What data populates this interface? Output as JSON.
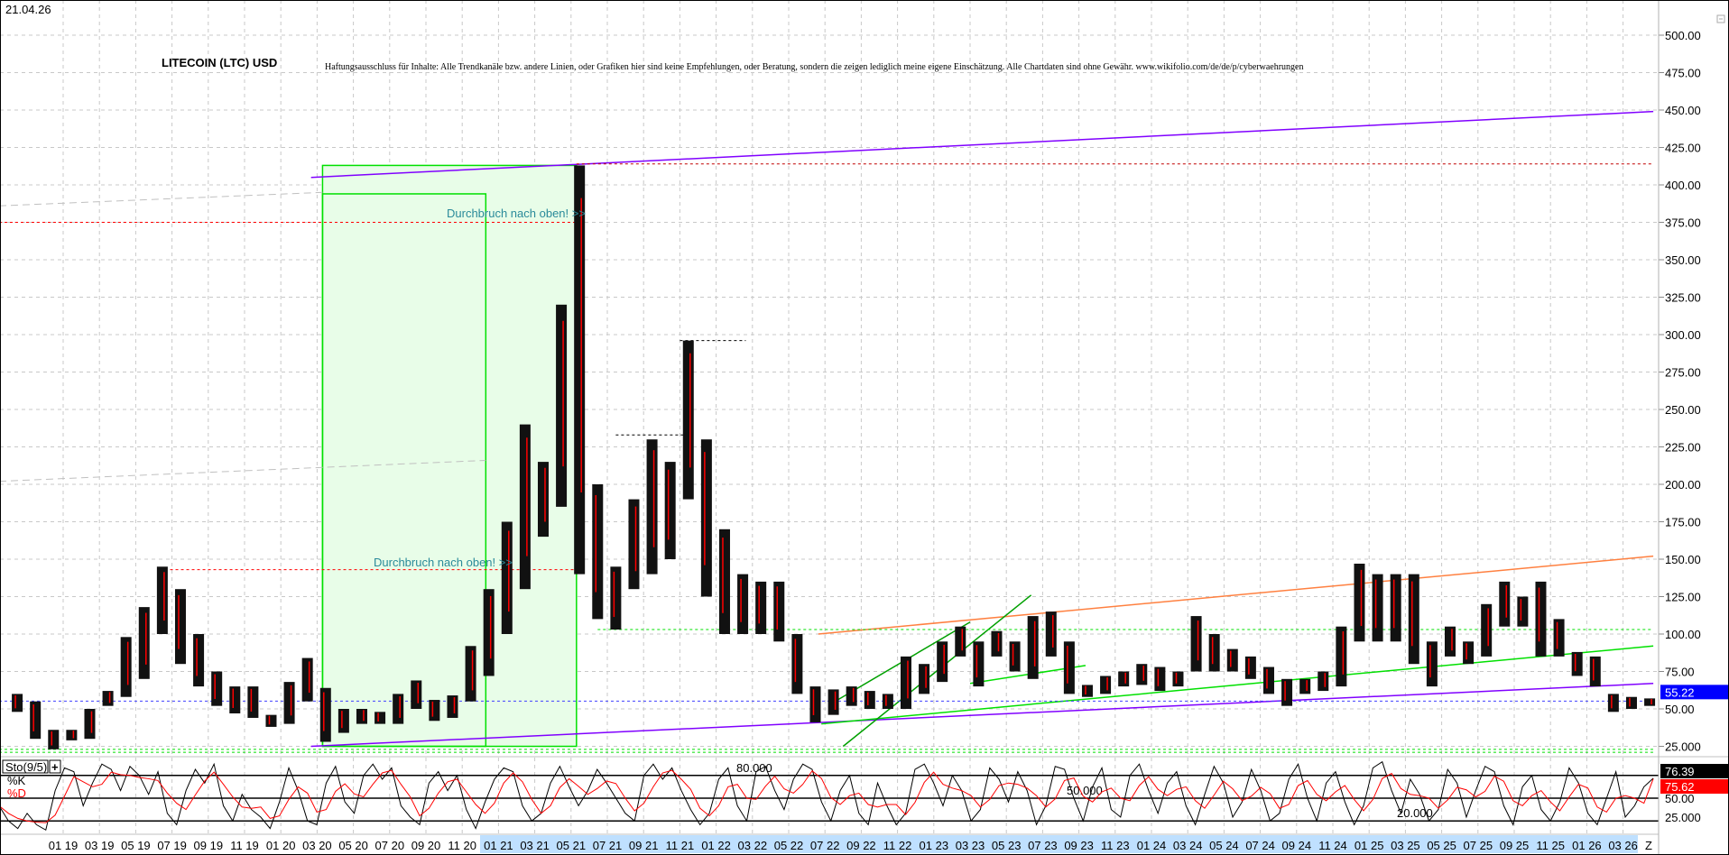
{
  "header": {
    "date": "21.04.26",
    "title": "LITECOIN (LTC) USD",
    "disclaimer": "Haftungsausschluss für Inhalte: Alle Trendkanäle bzw. andere Linien, oder Grafiken hier sind keine Empfehlungen, oder Beratung, sondern die zeigen lediglich meine eigene Einschätzung. Alle Chartdaten sind ohne Gewähr.  www.wikifolio.com/de/de/p/cyberwaehrungen"
  },
  "annotations_text": [
    "Durchbruch nach oben! >>",
    "Durchbruch nach oben! >>"
  ],
  "chart_data": [
    {
      "type": "bar",
      "title": "LITECOIN (LTC) USD",
      "ylim": [
        25,
        500
      ],
      "grid": true,
      "y_ticks": [
        "500.00",
        "475.00",
        "450.00",
        "425.00",
        "400.00",
        "375.00",
        "350.00",
        "325.00",
        "300.00",
        "275.00",
        "250.00",
        "225.00",
        "200.00",
        "175.00",
        "150.00",
        "125.00",
        "100.00",
        "75.00",
        "50.00",
        "25.000"
      ],
      "x_ticks": [
        "01 19",
        "03 19",
        "05 19",
        "07 19",
        "09 19",
        "11 19",
        "01 20",
        "03 20",
        "05 20",
        "07 20",
        "09 20",
        "11 20",
        "01 21",
        "03 21",
        "05 21",
        "07 21",
        "09 21",
        "11 21",
        "01 22",
        "03 22",
        "05 22",
        "07 22",
        "09 22",
        "11 22",
        "01 23",
        "03 23",
        "05 23",
        "07 23",
        "09 23",
        "11 23",
        "01 24",
        "03 24",
        "05 24",
        "07 24",
        "09 24",
        "11 24",
        "01 25",
        "03 25",
        "05 25",
        "07 25",
        "09 25",
        "11 25",
        "01 26",
        "03 26",
        "Z"
      ],
      "last_price": "55.22",
      "last_price_color": "#0000ff",
      "bars": [
        {
          "m": "2018-10",
          "h": 60,
          "l": 48
        },
        {
          "m": "2018-11",
          "h": 55,
          "l": 30
        },
        {
          "m": "2018-12",
          "h": 36,
          "l": 23
        },
        {
          "m": "2019-01",
          "h": 36,
          "l": 29
        },
        {
          "m": "2019-02",
          "h": 50,
          "l": 30
        },
        {
          "m": "2019-03",
          "h": 62,
          "l": 52
        },
        {
          "m": "2019-04",
          "h": 98,
          "l": 58
        },
        {
          "m": "2019-05",
          "h": 118,
          "l": 70
        },
        {
          "m": "2019-06",
          "h": 145,
          "l": 100
        },
        {
          "m": "2019-07",
          "h": 130,
          "l": 80
        },
        {
          "m": "2019-08",
          "h": 100,
          "l": 65
        },
        {
          "m": "2019-09",
          "h": 75,
          "l": 52
        },
        {
          "m": "2019-10",
          "h": 65,
          "l": 47
        },
        {
          "m": "2019-11",
          "h": 65,
          "l": 44
        },
        {
          "m": "2019-12",
          "h": 46,
          "l": 38
        },
        {
          "m": "2020-01",
          "h": 68,
          "l": 40
        },
        {
          "m": "2020-02",
          "h": 84,
          "l": 55
        },
        {
          "m": "2020-03",
          "h": 64,
          "l": 28
        },
        {
          "m": "2020-04",
          "h": 50,
          "l": 34
        },
        {
          "m": "2020-05",
          "h": 50,
          "l": 40
        },
        {
          "m": "2020-06",
          "h": 48,
          "l": 40
        },
        {
          "m": "2020-07",
          "h": 60,
          "l": 40
        },
        {
          "m": "2020-08",
          "h": 69,
          "l": 50
        },
        {
          "m": "2020-09",
          "h": 56,
          "l": 42
        },
        {
          "m": "2020-10",
          "h": 59,
          "l": 44
        },
        {
          "m": "2020-11",
          "h": 92,
          "l": 55
        },
        {
          "m": "2020-12",
          "h": 130,
          "l": 72
        },
        {
          "m": "2021-01",
          "h": 175,
          "l": 100
        },
        {
          "m": "2021-02",
          "h": 240,
          "l": 130
        },
        {
          "m": "2021-03",
          "h": 215,
          "l": 165
        },
        {
          "m": "2021-04",
          "h": 320,
          "l": 185
        },
        {
          "m": "2021-05",
          "h": 413,
          "l": 140
        },
        {
          "m": "2021-06",
          "h": 200,
          "l": 110
        },
        {
          "m": "2021-07",
          "h": 145,
          "l": 103
        },
        {
          "m": "2021-08",
          "h": 190,
          "l": 130
        },
        {
          "m": "2021-09",
          "h": 230,
          "l": 140
        },
        {
          "m": "2021-10",
          "h": 215,
          "l": 150
        },
        {
          "m": "2021-11",
          "h": 296,
          "l": 190
        },
        {
          "m": "2021-12",
          "h": 230,
          "l": 125
        },
        {
          "m": "2022-01",
          "h": 170,
          "l": 100
        },
        {
          "m": "2022-02",
          "h": 140,
          "l": 100
        },
        {
          "m": "2022-03",
          "h": 135,
          "l": 100
        },
        {
          "m": "2022-04",
          "h": 135,
          "l": 95
        },
        {
          "m": "2022-05",
          "h": 100,
          "l": 60
        },
        {
          "m": "2022-06",
          "h": 65,
          "l": 41
        },
        {
          "m": "2022-07",
          "h": 63,
          "l": 46
        },
        {
          "m": "2022-08",
          "h": 65,
          "l": 52
        },
        {
          "m": "2022-09",
          "h": 62,
          "l": 50
        },
        {
          "m": "2022-10",
          "h": 60,
          "l": 50
        },
        {
          "m": "2022-11",
          "h": 85,
          "l": 50
        },
        {
          "m": "2022-12",
          "h": 80,
          "l": 60
        },
        {
          "m": "2023-01",
          "h": 95,
          "l": 68
        },
        {
          "m": "2023-02",
          "h": 105,
          "l": 85
        },
        {
          "m": "2023-03",
          "h": 95,
          "l": 65
        },
        {
          "m": "2023-04",
          "h": 102,
          "l": 85
        },
        {
          "m": "2023-05",
          "h": 95,
          "l": 75
        },
        {
          "m": "2023-06",
          "h": 112,
          "l": 70
        },
        {
          "m": "2023-07",
          "h": 115,
          "l": 85
        },
        {
          "m": "2023-08",
          "h": 95,
          "l": 60
        },
        {
          "m": "2023-09",
          "h": 66,
          "l": 58
        },
        {
          "m": "2023-10",
          "h": 72,
          "l": 60
        },
        {
          "m": "2023-11",
          "h": 75,
          "l": 65
        },
        {
          "m": "2023-12",
          "h": 80,
          "l": 66
        },
        {
          "m": "2024-01",
          "h": 78,
          "l": 62
        },
        {
          "m": "2024-02",
          "h": 75,
          "l": 65
        },
        {
          "m": "2024-03",
          "h": 112,
          "l": 75
        },
        {
          "m": "2024-04",
          "h": 100,
          "l": 75
        },
        {
          "m": "2024-05",
          "h": 90,
          "l": 75
        },
        {
          "m": "2024-06",
          "h": 85,
          "l": 70
        },
        {
          "m": "2024-07",
          "h": 78,
          "l": 60
        },
        {
          "m": "2024-08",
          "h": 70,
          "l": 52
        },
        {
          "m": "2024-09",
          "h": 70,
          "l": 60
        },
        {
          "m": "2024-10",
          "h": 75,
          "l": 62
        },
        {
          "m": "2024-11",
          "h": 105,
          "l": 65
        },
        {
          "m": "2024-12",
          "h": 147,
          "l": 95
        },
        {
          "m": "2025-01",
          "h": 140,
          "l": 95
        },
        {
          "m": "2025-02",
          "h": 140,
          "l": 95
        },
        {
          "m": "2025-03",
          "h": 140,
          "l": 80
        },
        {
          "m": "2025-04",
          "h": 95,
          "l": 65
        },
        {
          "m": "2025-05",
          "h": 105,
          "l": 85
        },
        {
          "m": "2025-06",
          "h": 95,
          "l": 80
        },
        {
          "m": "2025-07",
          "h": 120,
          "l": 85
        },
        {
          "m": "2025-08",
          "h": 135,
          "l": 105
        },
        {
          "m": "2025-09",
          "h": 125,
          "l": 105
        },
        {
          "m": "2025-10",
          "h": 135,
          "l": 85
        },
        {
          "m": "2025-11",
          "h": 110,
          "l": 85
        },
        {
          "m": "2025-12",
          "h": 88,
          "l": 72
        },
        {
          "m": "2026-01",
          "h": 85,
          "l": 65
        },
        {
          "m": "2026-02",
          "h": 60,
          "l": 48
        },
        {
          "m": "2026-03",
          "h": 58,
          "l": 50
        },
        {
          "m": "2026-04",
          "h": 57,
          "l": 52
        }
      ],
      "lines": [
        {
          "color": "#8000ff",
          "style": "solid",
          "from": [
            "2020-02-21",
            25
          ],
          "to": [
            "2026-04-21",
            67
          ]
        },
        {
          "color": "#8000ff",
          "style": "solid",
          "from": [
            "2020-02-21",
            405
          ],
          "to": [
            "2026-04-21",
            449
          ]
        },
        {
          "color": "#ff8040",
          "style": "solid",
          "from": [
            "2022-06-20",
            100
          ],
          "to": [
            "2026-04-21",
            152
          ]
        },
        {
          "color": "#00e000",
          "style": "solid",
          "from": [
            "2022-06-25",
            40
          ],
          "to": [
            "2026-04-21",
            92
          ]
        },
        {
          "color": "#00a000",
          "style": "solid",
          "from": [
            "2022-08-01",
            25
          ],
          "to": [
            "2023-06-12",
            126
          ]
        },
        {
          "color": "#00a000",
          "style": "solid",
          "from": [
            "2022-07-22",
            56
          ],
          "to": [
            "2023-03-01",
            108
          ]
        },
        {
          "color": "#00e000",
          "style": "solid",
          "from": [
            "2023-03-01",
            67
          ],
          "to": [
            "2023-09-12",
            79
          ]
        },
        {
          "color": "#c0c0c0",
          "style": "dashed",
          "from": [
            "2018-09-15",
            386
          ],
          "to": [
            "2020-03-10",
            395
          ]
        },
        {
          "color": "#c0c0c0",
          "style": "dashed",
          "from": [
            "2018-09-15",
            202
          ],
          "to": [
            "2020-12-10",
            216
          ]
        },
        {
          "color": "#ff0000",
          "style": "dotted",
          "from": [
            "2018-09-15",
            375
          ],
          "to": [
            "2021-05-10",
            375
          ]
        },
        {
          "color": "#ff0000",
          "style": "dotted",
          "from": [
            "2019-06-10",
            143
          ],
          "to": [
            "2021-05-15",
            143
          ]
        },
        {
          "color": "#c00000",
          "style": "dotted",
          "from": [
            "2021-05-10",
            414
          ],
          "to": [
            "2026-04-21",
            414
          ]
        },
        {
          "color": "#000000",
          "style": "dotted",
          "from": [
            "2021-11-01",
            296
          ],
          "to": [
            "2022-02-20",
            296
          ]
        },
        {
          "color": "#000000",
          "style": "dotted",
          "from": [
            "2021-07-15",
            233
          ],
          "to": [
            "2021-11-10",
            233
          ]
        },
        {
          "color": "#00e000",
          "style": "dotted",
          "from": [
            "2021-06-15",
            103
          ],
          "to": [
            "2026-04-21",
            103
          ]
        },
        {
          "color": "#00e000",
          "style": "dotted",
          "from": [
            "2018-09-15",
            23
          ],
          "to": [
            "2026-04-21",
            23
          ]
        },
        {
          "color": "#00e000",
          "style": "dotted",
          "from": [
            "2018-09-15",
            21
          ],
          "to": [
            "2026-04-21",
            21
          ]
        },
        {
          "color": "#4040ff",
          "style": "dotted",
          "from": [
            "2018-09-15",
            55.22
          ],
          "to": [
            "2026-04-21",
            55.22
          ]
        }
      ],
      "boxes": [
        {
          "from": [
            "2020-03-10",
            25
          ],
          "to": [
            "2021-05-10",
            413
          ],
          "stroke": "#00e000",
          "fill": "#e8fde8"
        },
        {
          "from": [
            "2020-03-10",
            25
          ],
          "to": [
            "2020-12-10",
            394
          ],
          "stroke": "#00e000",
          "fill": "none"
        }
      ]
    },
    {
      "type": "line",
      "title": "Sto(9/5)",
      "ylim": [
        0,
        100
      ],
      "levels": [
        {
          "value": 80,
          "label": "80.000"
        },
        {
          "value": 50,
          "label": "50.000"
        },
        {
          "value": 20,
          "label": "20.000"
        }
      ],
      "y_ticks": [
        "50.00",
        "25.000"
      ],
      "series": [
        {
          "name": "%K",
          "color": "#000000",
          "last": "76.39",
          "values": [
            40,
            20,
            10,
            30,
            15,
            8,
            60,
            90,
            85,
            40,
            70,
            95,
            88,
            60,
            92,
            80,
            55,
            85,
            30,
            15,
            60,
            88,
            70,
            95,
            40,
            20,
            55,
            35,
            25,
            10,
            45,
            90,
            60,
            20,
            15,
            70,
            92,
            45,
            30,
            80,
            95,
            75,
            90,
            40,
            25,
            15,
            70,
            85,
            60,
            80,
            35,
            10,
            45,
            75,
            90,
            85,
            40,
            20,
            30,
            70,
            92,
            65,
            40,
            60,
            88,
            70,
            50,
            30,
            20,
            80,
            95,
            75,
            90,
            60,
            35,
            15,
            30,
            75,
            90,
            40,
            20,
            85,
            92,
            60,
            35,
            75,
            95,
            88,
            45,
            20,
            60,
            80,
            30,
            15,
            70,
            40,
            15,
            30,
            88,
            95,
            70,
            40,
            80,
            60,
            20,
            35,
            90,
            75,
            45,
            85,
            60,
            15,
            40,
            92,
            88,
            50,
            20,
            65,
            90,
            35,
            25,
            80,
            95,
            60,
            30,
            70,
            85,
            40,
            15,
            55,
            92,
            70,
            25,
            45,
            88,
            60,
            20,
            30,
            75,
            95,
            50,
            20,
            70,
            85,
            45,
            15,
            40,
            90,
            98,
            60,
            30,
            75,
            55,
            20,
            35,
            88,
            70,
            25,
            60,
            92,
            85,
            40,
            15,
            65,
            80,
            35,
            20,
            45,
            90,
            70,
            30,
            15,
            50,
            85,
            25,
            40,
            65,
            76.39
          ]
        },
        {
          "name": "%D",
          "color": "#ff0000",
          "last": "75.62"
        }
      ]
    }
  ]
}
